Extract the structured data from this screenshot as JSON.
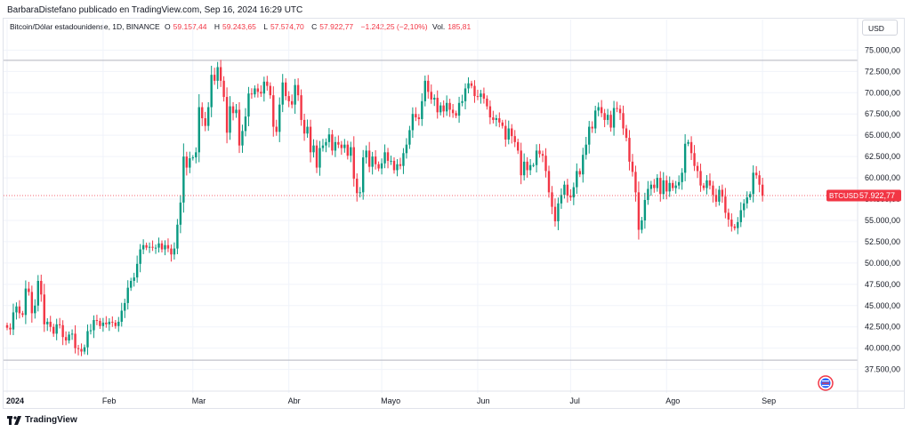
{
  "publisher": "BarbaraDistefano publicado en TradingView.com, Sep 16, 2024 16:29 UTC",
  "legend": {
    "symbol": "Bitcoin/Dólar estadounidense, 1D, BINANCE",
    "o_label": "O",
    "o_value": "59.157,44",
    "h_label": "H",
    "h_value": "59.243,65",
    "l_label": "L",
    "l_value": "57.574,70",
    "c_label": "C",
    "c_value": "57.922,77",
    "change": "−1.242,25 (−2,10%)",
    "vol_label": "Vol.",
    "vol_value": "185,81"
  },
  "currency": "USD",
  "footer": {
    "brand": "TradingView"
  },
  "colors": {
    "up": "#089981",
    "down": "#f23645",
    "grid": "#f0f3fa",
    "text": "#131722",
    "price_line": "#f23645"
  },
  "chart_data": {
    "type": "candlestick",
    "symbol": "BTCUSD",
    "interval": "1D",
    "exchange": "BINANCE",
    "last_price": 57922.77,
    "last_price_label": "57.922,77",
    "ylim": [
      36000,
      76500
    ],
    "y_ticks": [
      {
        "value": 75000,
        "label": "75.000,00"
      },
      {
        "value": 72500,
        "label": "72.500,00"
      },
      {
        "value": 70000,
        "label": "70.000,00"
      },
      {
        "value": 67500,
        "label": "67.500,00"
      },
      {
        "value": 65000,
        "label": "65.000,00"
      },
      {
        "value": 62500,
        "label": "62.500,00"
      },
      {
        "value": 60000,
        "label": "60.000,00"
      },
      {
        "value": 57500,
        "label": "57.500,00"
      },
      {
        "value": 55000,
        "label": "55.000,00"
      },
      {
        "value": 52500,
        "label": "52.500,00"
      },
      {
        "value": 50000,
        "label": "50.000,00"
      },
      {
        "value": 47500,
        "label": "47.500,00"
      },
      {
        "value": 45000,
        "label": "45.000,00"
      },
      {
        "value": 42500,
        "label": "42.500,00"
      },
      {
        "value": 40000,
        "label": "40.000,00"
      },
      {
        "value": 37500,
        "label": "37.500,00"
      }
    ],
    "x_ticks": [
      {
        "day": 0,
        "label": "2024",
        "bold": true
      },
      {
        "day": 31,
        "label": "Feb"
      },
      {
        "day": 60,
        "label": "Mar"
      },
      {
        "day": 91,
        "label": "Abr"
      },
      {
        "day": 121,
        "label": "Mayo"
      },
      {
        "day": 152,
        "label": "Jun"
      },
      {
        "day": 182,
        "label": "Jul"
      },
      {
        "day": 213,
        "label": "Ago"
      },
      {
        "day": 244,
        "label": "Sep"
      }
    ],
    "horizontal_levels": [
      73800,
      38600
    ],
    "closes": [
      42400,
      42200,
      44200,
      44900,
      44100,
      43900,
      47000,
      46600,
      44100,
      45000,
      47900,
      46300,
      42800,
      43100,
      42500,
      41700,
      42800,
      42700,
      41300,
      40900,
      41600,
      41700,
      40000,
      39900,
      39600,
      40100,
      42000,
      42100,
      43300,
      43200,
      42600,
      43000,
      42800,
      43100,
      43000,
      42600,
      43100,
      44400,
      45300,
      47100,
      47900,
      48300,
      49900,
      51600,
      52100,
      51800,
      51900,
      51800,
      51800,
      52300,
      51600,
      52100,
      51700,
      51000,
      51700,
      54500,
      57100,
      62500,
      61200,
      62300,
      62400,
      63000,
      68300,
      67000,
      66100,
      68300,
      72100,
      71400,
      73000,
      71400,
      69500,
      65300,
      68400,
      67600,
      68000,
      63800,
      65500,
      67200,
      69900,
      69800,
      70500,
      70100,
      69900,
      71300,
      70800,
      69700,
      66000,
      65400,
      68600,
      71200,
      69600,
      69000,
      68600,
      70900,
      69700,
      66800,
      65200,
      66000,
      63000,
      63800,
      61200,
      63500,
      63800,
      64200,
      65100,
      63200,
      64200,
      63900,
      63500,
      63900,
      62600,
      63600,
      59900,
      58200,
      58300,
      62400,
      63200,
      61300,
      62500,
      61600,
      61100,
      61700,
      63000,
      62000,
      62000,
      60900,
      61600,
      61400,
      62900,
      63900,
      65600,
      67500,
      67100,
      66900,
      69000,
      71400,
      70100,
      69200,
      69400,
      67700,
      68500,
      67800,
      68800,
      68000,
      67600,
      67300,
      68800,
      69000,
      70500,
      71100,
      70800,
      69600,
      69500,
      69900,
      69300,
      68400,
      67100,
      66800,
      67000,
      66500,
      66100,
      64500,
      65800,
      64900,
      64200,
      63200,
      60300,
      61900,
      60900,
      61500,
      61500,
      63200,
      62800,
      62600,
      60800,
      58300,
      56600,
      54900,
      57000,
      58000,
      59200,
      57900,
      57700,
      58900,
      60800,
      60400,
      62700,
      63900,
      66000,
      65800,
      67900,
      68300,
      67600,
      66800,
      67400,
      65900,
      68200,
      68100,
      67600,
      65800,
      64700,
      61900,
      60700,
      58300,
      53900,
      55000,
      57400,
      58700,
      59200,
      58800,
      60000,
      58100,
      59700,
      58400,
      59400,
      58800,
      59100,
      59500,
      60600,
      64000,
      64200,
      62900,
      61400,
      60800,
      59100,
      58800,
      59700,
      59100,
      58000,
      57200,
      58600,
      57800,
      55900,
      55100,
      54300,
      54100,
      54800,
      56200,
      57000,
      57700,
      58100,
      60600,
      60300,
      59200,
      57900
    ]
  }
}
